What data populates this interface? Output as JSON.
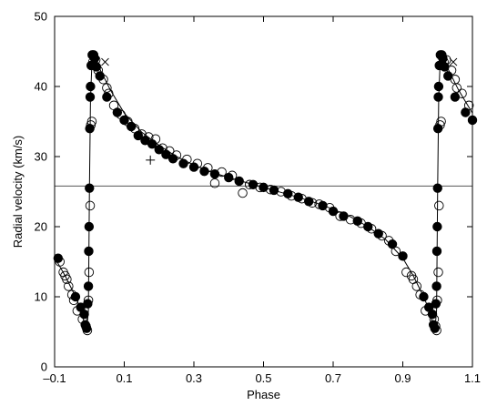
{
  "chart_data": {
    "type": "scatter",
    "title": "",
    "xlabel": "Phase",
    "ylabel": "Radial velocity (km/s)",
    "xlim": [
      -0.1,
      1.1
    ],
    "ylim": [
      0,
      50
    ],
    "x_ticks": [
      -0.1,
      0.1,
      0.3,
      0.5,
      0.7,
      0.9,
      1.1
    ],
    "x_tick_labels": [
      "–0.1",
      "0.1",
      "0.3",
      "0.5",
      "0.7",
      "0.9",
      "1.1"
    ],
    "y_ticks": [
      0,
      10,
      20,
      30,
      40,
      50
    ],
    "y_tick_labels": [
      "0",
      "10",
      "20",
      "30",
      "40",
      "50"
    ],
    "grid": false,
    "legend": "none",
    "reference_line": {
      "orientation": "horizontal",
      "y": 25.8
    },
    "model_curve": {
      "x": [
        -0.1,
        -0.07,
        -0.04,
        -0.025,
        -0.015,
        -0.008,
        -0.003,
        0.0,
        0.003,
        0.008,
        0.015,
        0.03,
        0.06,
        0.1,
        0.15,
        0.2,
        0.25,
        0.3,
        0.35,
        0.4,
        0.45,
        0.5,
        0.55,
        0.6,
        0.65,
        0.7,
        0.75,
        0.8,
        0.85,
        0.9,
        0.93,
        0.96,
        0.975,
        0.985,
        0.992,
        0.997,
        1.0,
        1.003,
        1.008,
        1.015,
        1.03,
        1.06,
        1.1
      ],
      "y": [
        15.6,
        13.0,
        10.0,
        8.2,
        6.3,
        5.2,
        8.0,
        25.8,
        38.0,
        44.5,
        44.6,
        42.5,
        39.5,
        36.2,
        33.5,
        31.6,
        30.0,
        28.8,
        27.8,
        27.0,
        26.3,
        25.6,
        24.9,
        24.2,
        23.4,
        22.5,
        21.4,
        20.0,
        18.2,
        15.5,
        13.0,
        10.0,
        8.2,
        6.3,
        5.2,
        8.0,
        25.8,
        38.0,
        44.5,
        44.6,
        42.5,
        39.5,
        36.2
      ]
    },
    "series": [
      {
        "marker": "filled-circle",
        "x": [
          -0.09,
          -0.04,
          -0.025,
          -0.015,
          -0.012,
          -0.008,
          -0.005,
          -0.003,
          -0.002,
          -0.001,
          0.0,
          0.001,
          0.002,
          0.003,
          0.005,
          0.008,
          0.012,
          0.015,
          0.02,
          0.03,
          0.05,
          0.08,
          0.1,
          0.12,
          0.14,
          0.16,
          0.18,
          0.2,
          0.22,
          0.24,
          0.27,
          0.3,
          0.33,
          0.36,
          0.4,
          0.43,
          0.47,
          0.5,
          0.53,
          0.57,
          0.6,
          0.63,
          0.67,
          0.7,
          0.73,
          0.77,
          0.8,
          0.83,
          0.87,
          0.9,
          0.96,
          0.975,
          0.985,
          0.988,
          0.992,
          0.995,
          0.997,
          0.998,
          0.999,
          1.0,
          1.001,
          1.002,
          1.003,
          1.005,
          1.008,
          1.012,
          1.015,
          1.02,
          1.03,
          1.05,
          1.08,
          1.1
        ],
        "y": [
          15.5,
          10.0,
          8.5,
          7.5,
          6.0,
          5.5,
          9.0,
          11.5,
          16.5,
          20.0,
          25.5,
          34.0,
          38.5,
          40.0,
          43.0,
          44.5,
          44.5,
          44.0,
          42.8,
          41.5,
          38.5,
          36.3,
          35.2,
          34.3,
          33.0,
          32.3,
          31.8,
          31.0,
          30.3,
          29.7,
          29.0,
          28.5,
          27.9,
          27.5,
          27.0,
          26.5,
          26.0,
          25.6,
          25.2,
          24.7,
          24.2,
          23.6,
          23.0,
          22.2,
          21.5,
          20.8,
          20.0,
          19.0,
          17.5,
          15.8,
          10.0,
          8.5,
          7.5,
          6.0,
          5.5,
          9.0,
          11.5,
          16.5,
          20.0,
          25.5,
          34.0,
          38.5,
          40.0,
          43.0,
          44.5,
          44.5,
          44.0,
          42.8,
          41.5,
          38.5,
          36.3,
          35.2
        ]
      },
      {
        "marker": "open-circle",
        "x": [
          -0.085,
          -0.075,
          -0.07,
          -0.065,
          -0.06,
          -0.05,
          -0.045,
          -0.035,
          -0.02,
          -0.01,
          -0.006,
          -0.003,
          -0.001,
          0.002,
          0.004,
          0.007,
          0.01,
          0.018,
          0.025,
          0.04,
          0.05,
          0.055,
          0.07,
          0.09,
          0.11,
          0.13,
          0.15,
          0.17,
          0.19,
          0.21,
          0.23,
          0.25,
          0.28,
          0.31,
          0.34,
          0.36,
          0.38,
          0.41,
          0.44,
          0.46,
          0.49,
          0.52,
          0.55,
          0.58,
          0.61,
          0.64,
          0.66,
          0.69,
          0.72,
          0.75,
          0.78,
          0.81,
          0.84,
          0.86,
          0.88,
          0.91,
          0.925,
          0.93,
          0.94,
          0.95,
          0.965,
          0.99,
          0.994,
          0.997,
          0.999,
          1.002,
          1.004,
          1.007,
          1.01,
          1.018,
          1.025,
          1.04,
          1.05,
          1.055,
          1.07,
          1.09
        ],
        "y": [
          15.0,
          13.5,
          13.0,
          12.5,
          11.5,
          10.3,
          9.5,
          8.0,
          6.8,
          5.8,
          5.2,
          9.5,
          13.5,
          23.0,
          34.5,
          35.0,
          43.5,
          43.8,
          42.3,
          41.0,
          39.8,
          39.0,
          37.3,
          36.0,
          35.0,
          34.0,
          33.2,
          32.8,
          32.5,
          31.2,
          30.8,
          30.2,
          29.6,
          29.0,
          28.4,
          26.2,
          27.8,
          27.3,
          24.8,
          26.0,
          25.6,
          25.3,
          25.0,
          24.4,
          24.0,
          23.4,
          23.2,
          22.7,
          21.5,
          21.0,
          20.5,
          19.7,
          18.7,
          18.0,
          16.5,
          13.5,
          13.0,
          12.5,
          11.5,
          10.3,
          8.0,
          6.8,
          5.8,
          5.2,
          9.5,
          13.5,
          23.0,
          34.5,
          35.0,
          43.5,
          43.8,
          42.3,
          41.0,
          39.8,
          39.0,
          37.3
        ]
      },
      {
        "marker": "cross",
        "x": [
          0.045,
          1.045
        ],
        "y": [
          43.5,
          43.5
        ]
      },
      {
        "marker": "plus",
        "x": [
          0.175
        ],
        "y": [
          29.5
        ]
      }
    ]
  }
}
